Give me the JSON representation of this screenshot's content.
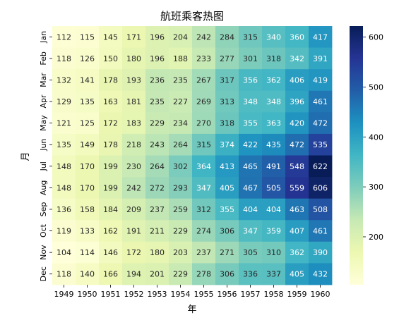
{
  "chart_data": {
    "type": "heatmap",
    "title": "航班乘客热图",
    "xlabel": "年",
    "ylabel": "月",
    "x_categories": [
      "1949",
      "1950",
      "1951",
      "1952",
      "1953",
      "1954",
      "1955",
      "1956",
      "1957",
      "1958",
      "1959",
      "1960"
    ],
    "y_categories": [
      "Jan",
      "Feb",
      "Mar",
      "Apr",
      "May",
      "Jun",
      "Jul",
      "Aug",
      "Sep",
      "Oct",
      "Nov",
      "Dec"
    ],
    "values": [
      [
        112,
        115,
        145,
        171,
        196,
        204,
        242,
        284,
        315,
        340,
        360,
        417
      ],
      [
        118,
        126,
        150,
        180,
        196,
        188,
        233,
        277,
        301,
        318,
        342,
        391
      ],
      [
        132,
        141,
        178,
        193,
        236,
        235,
        267,
        317,
        356,
        362,
        406,
        419
      ],
      [
        129,
        135,
        163,
        181,
        235,
        227,
        269,
        313,
        348,
        348,
        396,
        461
      ],
      [
        121,
        125,
        172,
        183,
        229,
        234,
        270,
        318,
        355,
        363,
        420,
        472
      ],
      [
        135,
        149,
        178,
        218,
        243,
        264,
        315,
        374,
        422,
        435,
        472,
        535
      ],
      [
        148,
        170,
        199,
        230,
        264,
        302,
        364,
        413,
        465,
        491,
        548,
        622
      ],
      [
        148,
        170,
        199,
        242,
        272,
        293,
        347,
        405,
        467,
        505,
        559,
        606
      ],
      [
        136,
        158,
        184,
        209,
        237,
        259,
        312,
        355,
        404,
        404,
        463,
        508
      ],
      [
        119,
        133,
        162,
        191,
        211,
        229,
        274,
        306,
        347,
        359,
        407,
        461
      ],
      [
        104,
        114,
        146,
        172,
        180,
        203,
        237,
        271,
        305,
        310,
        362,
        390
      ],
      [
        118,
        140,
        166,
        194,
        201,
        229,
        278,
        306,
        336,
        337,
        405,
        432
      ]
    ],
    "colormap": "YlGnBu",
    "value_range": [
      104,
      622
    ],
    "colorbar_ticks": [
      200,
      300,
      400,
      500,
      600
    ],
    "annotations": true
  }
}
